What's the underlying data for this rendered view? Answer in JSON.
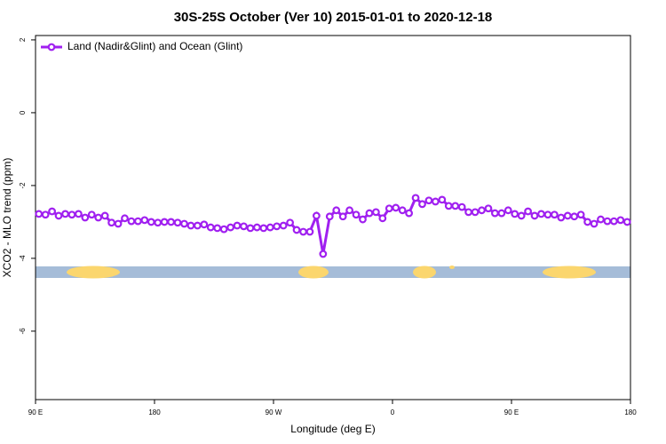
{
  "chart_data": {
    "type": "line",
    "title": "30S-25S October (Ver 10)   2015-01-01 to 2020-12-18",
    "xlabel": "Longitude (deg E)",
    "ylabel": "XCO2 - MLO trend (ppm)",
    "legend": "top-left",
    "xlim": [
      90,
      540
    ],
    "ylim": [
      -7.88,
      2.12
    ],
    "xticks": [
      {
        "value": 90,
        "label": "90 E"
      },
      {
        "value": 180,
        "label": "180"
      },
      {
        "value": 270,
        "label": "90 W"
      },
      {
        "value": 360,
        "label": "0"
      },
      {
        "value": 450,
        "label": "90 E"
      },
      {
        "value": 540,
        "label": "180"
      }
    ],
    "yticks": [
      2,
      0,
      -2,
      -4,
      -6
    ],
    "x": [
      92.5,
      97.5,
      102.5,
      107.5,
      112.5,
      117.5,
      122.5,
      127.5,
      132.5,
      137.5,
      142.5,
      147.5,
      152.5,
      157.5,
      162.5,
      167.5,
      172.5,
      177.5,
      182.5,
      187.5,
      192.5,
      197.5,
      202.5,
      207.5,
      212.5,
      217.5,
      222.5,
      227.5,
      232.5,
      237.5,
      242.5,
      247.5,
      252.5,
      257.5,
      262.5,
      267.5,
      272.5,
      277.5,
      282.5,
      287.5,
      292.5,
      297.5,
      302.5,
      307.5,
      312.5,
      317.5,
      322.5,
      327.5,
      332.5,
      337.5,
      342.5,
      347.5,
      352.5,
      357.5,
      362.5,
      367.5,
      372.5,
      377.5,
      382.5,
      387.5,
      392.5,
      397.5,
      402.5,
      407.5,
      412.5,
      417.5,
      422.5,
      427.5,
      432.5,
      437.5,
      442.5,
      447.5,
      452.5,
      457.5,
      462.5,
      467.5,
      472.5,
      477.5,
      482.5,
      487.5,
      492.5,
      497.5,
      502.5,
      507.5,
      512.5,
      517.5,
      522.5,
      527.5,
      532.5,
      537.5
    ],
    "series": [
      {
        "name": "Land (Nadir&Glint) and Ocean (Glint)",
        "color": "#a020f0",
        "values": [
          -2.78,
          -2.8,
          -2.71,
          -2.83,
          -2.78,
          -2.8,
          -2.78,
          -2.88,
          -2.8,
          -2.88,
          -2.83,
          -3.02,
          -3.05,
          -2.9,
          -2.98,
          -2.98,
          -2.95,
          -3.0,
          -3.02,
          -3.0,
          -3.0,
          -3.02,
          -3.05,
          -3.1,
          -3.1,
          -3.07,
          -3.15,
          -3.17,
          -3.2,
          -3.15,
          -3.1,
          -3.12,
          -3.17,
          -3.15,
          -3.17,
          -3.15,
          -3.12,
          -3.1,
          -3.02,
          -3.22,
          -3.27,
          -3.27,
          -2.83,
          -3.88,
          -2.85,
          -2.68,
          -2.85,
          -2.68,
          -2.8,
          -2.93,
          -2.76,
          -2.73,
          -2.9,
          -2.63,
          -2.61,
          -2.68,
          -2.76,
          -2.34,
          -2.51,
          -2.41,
          -2.44,
          -2.39,
          -2.56,
          -2.56,
          -2.59,
          -2.73,
          -2.73,
          -2.68,
          -2.63,
          -2.76,
          -2.76,
          -2.68,
          -2.78,
          -2.83,
          -2.71,
          -2.83,
          -2.78,
          -2.8,
          -2.8,
          -2.88,
          -2.83,
          -2.85,
          -2.8,
          -3.0,
          -3.05,
          -2.93,
          -2.98,
          -2.98,
          -2.95,
          -3.0
        ]
      }
    ]
  }
}
